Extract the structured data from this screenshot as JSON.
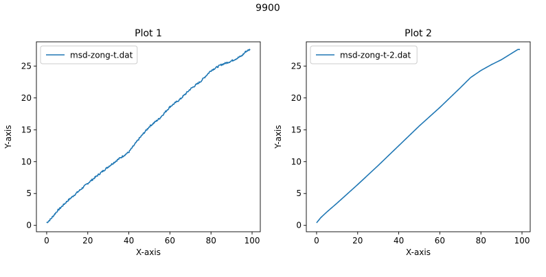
{
  "figure": {
    "suptitle": "9900"
  },
  "colors": {
    "line": "#1f77b4",
    "axis": "#000000",
    "legend_border": "#cccccc"
  },
  "chart_data": [
    {
      "type": "line",
      "title": "Plot 1",
      "xlabel": "X-axis",
      "ylabel": "Y-axis",
      "xlim": [
        -5,
        104
      ],
      "ylim": [
        -1,
        28.8
      ],
      "xticks": [
        0,
        20,
        40,
        60,
        80,
        100
      ],
      "yticks": [
        0,
        5,
        10,
        15,
        20,
        25
      ],
      "grid": false,
      "legend": {
        "position": "top-left",
        "entries": [
          "msd-zong-t.dat"
        ]
      },
      "series": [
        {
          "name": "msd-zong-t.dat",
          "noisy": true,
          "x": [
            0,
            2,
            5,
            10,
            15,
            20,
            25,
            30,
            35,
            40,
            45,
            50,
            55,
            60,
            65,
            70,
            75,
            80,
            85,
            90,
            95,
            97,
            99
          ],
          "y": [
            0.4,
            1.0,
            2.2,
            3.8,
            5.2,
            6.6,
            7.9,
            9.2,
            10.4,
            11.5,
            13.6,
            15.5,
            16.8,
            18.6,
            19.8,
            21.4,
            22.6,
            24.3,
            25.2,
            25.8,
            26.6,
            27.3,
            27.6
          ]
        }
      ]
    },
    {
      "type": "line",
      "title": "Plot 2",
      "xlabel": "X-axis",
      "ylabel": "Y-axis",
      "xlim": [
        -5,
        104
      ],
      "ylim": [
        -1,
        28.8
      ],
      "xticks": [
        0,
        20,
        40,
        60,
        80,
        100
      ],
      "yticks": [
        0,
        5,
        10,
        15,
        20,
        25
      ],
      "grid": false,
      "legend": {
        "position": "top-left",
        "entries": [
          "msd-zong-t-2.dat"
        ]
      },
      "series": [
        {
          "name": "msd-zong-t-2.dat",
          "noisy": false,
          "x": [
            0,
            2,
            5,
            10,
            20,
            30,
            40,
            50,
            60,
            70,
            75,
            80,
            85,
            90,
            95,
            98,
            99
          ],
          "y": [
            0.4,
            1.2,
            2.1,
            3.5,
            6.4,
            9.4,
            12.5,
            15.6,
            18.5,
            21.6,
            23.2,
            24.3,
            25.2,
            26.0,
            27.0,
            27.6,
            27.6
          ]
        }
      ]
    }
  ]
}
